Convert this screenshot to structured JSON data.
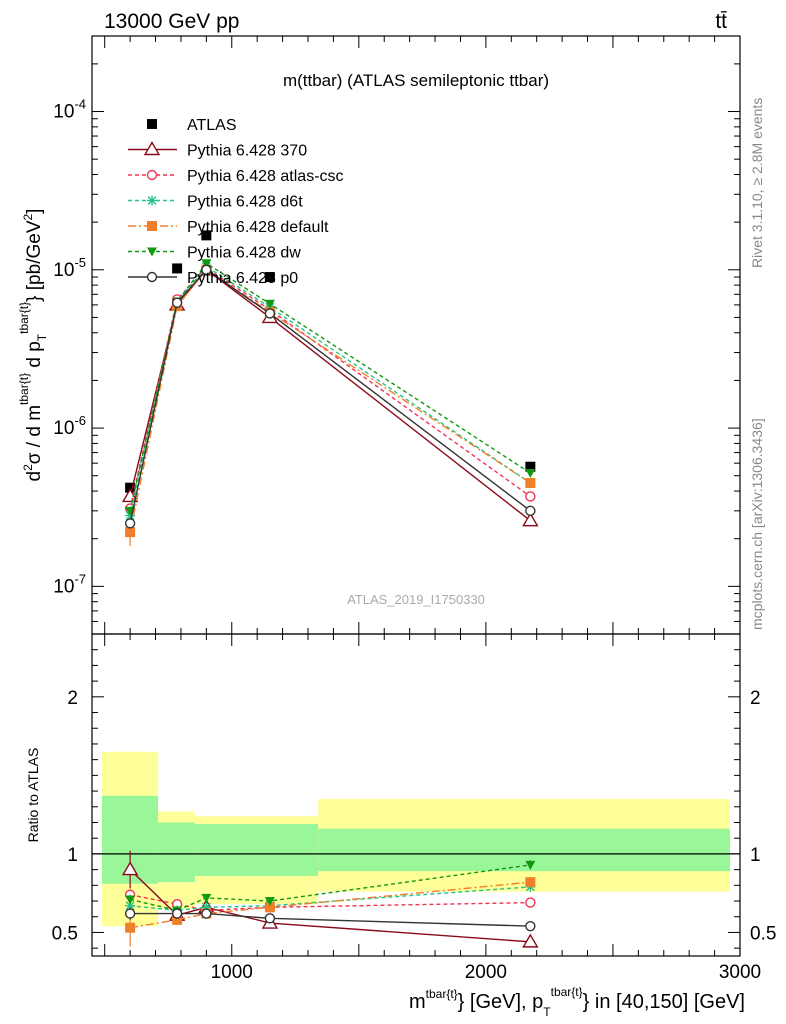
{
  "header": {
    "left": "13000 GeV pp",
    "right": "tt̄"
  },
  "side_labels": {
    "rivet": "Rivet 3.1.10, ≥ 2.8M events",
    "mcplots": "mcplots.cern.ch [arXiv:1306.3436]"
  },
  "chart_data": [
    {
      "type": "line",
      "title": "m(ttbar) (ATLAS semileptonic ttbar)",
      "watermark": "ATLAS_2019_I1750330",
      "ylabel": "d²σ / d m^{tbar{t}} d p_T^{tbar{t}} [pb/GeV²]",
      "yscale": "log",
      "ylim": [
        5e-08,
        0.0003
      ],
      "xlim": [
        450,
        3000
      ],
      "legend_position": "top-left",
      "series": [
        {
          "name": "ATLAS",
          "color": "#000000",
          "marker": "square-filled",
          "dash": "",
          "x": [
            600,
            785,
            900,
            1150,
            2175
          ],
          "y": [
            4.2e-07,
            1.02e-05,
            1.65e-05,
            9e-06,
            5.7e-07
          ]
        },
        {
          "name": "Pythia 6.428 370",
          "color": "#8b0a1a",
          "marker": "triangle-open",
          "dash": "",
          "x": [
            600,
            785,
            900,
            1150,
            2175
          ],
          "y": [
            3.7e-07,
            6e-06,
            1e-05,
            5e-06,
            2.6e-07
          ],
          "err": [
            5e-09,
            0,
            0,
            0,
            0
          ]
        },
        {
          "name": "Pythia 6.428 atlas-csc",
          "color": "#ee3355",
          "marker": "circle-open",
          "dash": "4,3",
          "x": [
            600,
            785,
            900,
            1150,
            2175
          ],
          "y": [
            3.1e-07,
            6.5e-06,
            1.02e-05,
            5.6e-06,
            3.7e-07
          ]
        },
        {
          "name": "Pythia 6.428 d6t",
          "color": "#22c48a",
          "marker": "star",
          "dash": "4,3",
          "x": [
            600,
            785,
            900,
            1150,
            2175
          ],
          "y": [
            2.8e-07,
            6.2e-06,
            1.05e-05,
            5.8e-06,
            4.5e-07
          ]
        },
        {
          "name": "Pythia 6.428 default",
          "color": "#f07f2a",
          "marker": "square-filled",
          "dash": "8,3,2,3",
          "x": [
            600,
            785,
            900,
            1150,
            2175
          ],
          "y": [
            2.2e-07,
            5.9e-06,
            1e-05,
            5.4e-06,
            4.5e-07
          ],
          "err": [
            4e-08,
            0,
            0,
            0,
            0
          ]
        },
        {
          "name": "Pythia 6.428 dw",
          "color": "#119911",
          "marker": "triangle-down-filled",
          "dash": "4,3",
          "x": [
            600,
            785,
            900,
            1150,
            2175
          ],
          "y": [
            3e-07,
            6.3e-06,
            1.1e-05,
            6.1e-06,
            5.2e-07
          ]
        },
        {
          "name": "Pythia 6.428 p0",
          "color": "#333333",
          "marker": "circle-open",
          "dash": "",
          "x": [
            600,
            785,
            900,
            1150,
            2175
          ],
          "y": [
            2.5e-07,
            6.2e-06,
            1e-05,
            5.3e-06,
            3e-07
          ]
        }
      ]
    },
    {
      "type": "line",
      "ylabel": "Ratio to ATLAS",
      "xlabel": "m^{tbar{t}} [GeV], p_T^{tbar{t}} in [40,150] [GeV]",
      "ylim": [
        0.35,
        2.4
      ],
      "xlim": [
        450,
        3000
      ],
      "yticks": [
        0.5,
        1,
        2
      ],
      "xticks": [
        1000,
        2000,
        3000
      ],
      "bands": [
        {
          "x": [
            450,
            710
          ],
          "outer": [
            0.54,
            1.65
          ],
          "inner": [
            0.81,
            1.37
          ]
        },
        {
          "x": [
            710,
            855
          ],
          "outer": [
            0.65,
            1.27
          ],
          "inner": [
            0.82,
            1.2
          ]
        },
        {
          "x": [
            855,
            1340
          ],
          "outer": [
            0.68,
            1.24
          ],
          "inner": [
            0.86,
            1.19
          ]
        },
        {
          "x": [
            1340,
            3000
          ],
          "outer": [
            0.76,
            1.35
          ],
          "inner": [
            0.89,
            1.16
          ]
        }
      ],
      "band_colors": {
        "outer": "#ffff99",
        "inner": "#99f799"
      },
      "series": [
        {
          "name": "Pythia 6.428 370",
          "x": [
            600,
            785,
            900,
            1150,
            2175
          ],
          "y": [
            0.9,
            0.61,
            0.66,
            0.56,
            0.44
          ],
          "err": [
            0.12,
            0.02,
            0.03,
            0.02,
            0.03
          ]
        },
        {
          "name": "Pythia 6.428 atlas-csc",
          "x": [
            600,
            785,
            900,
            1150,
            2175
          ],
          "y": [
            0.74,
            0.68,
            0.64,
            0.66,
            0.69
          ],
          "err": [
            0.03,
            0.02,
            0.02,
            0.02,
            0.03
          ]
        },
        {
          "name": "Pythia 6.428 d6t",
          "x": [
            600,
            785,
            900,
            1150,
            2175
          ],
          "y": [
            0.67,
            0.64,
            0.66,
            0.67,
            0.79
          ],
          "err": [
            0.03,
            0.02,
            0.02,
            0.02,
            0.03
          ]
        },
        {
          "name": "Pythia 6.428 default",
          "x": [
            600,
            785,
            900,
            1150,
            2175
          ],
          "y": [
            0.53,
            0.58,
            0.62,
            0.66,
            0.82
          ],
          "err": [
            0.12,
            0.02,
            0.02,
            0.02,
            0.03
          ]
        },
        {
          "name": "Pythia 6.428 dw",
          "x": [
            600,
            785,
            900,
            1150,
            2175
          ],
          "y": [
            0.71,
            0.64,
            0.72,
            0.7,
            0.93
          ],
          "err": [
            0.03,
            0.02,
            0.02,
            0.02,
            0.03
          ]
        },
        {
          "name": "Pythia 6.428 p0",
          "x": [
            600,
            785,
            900,
            1150,
            2175
          ],
          "y": [
            0.62,
            0.62,
            0.62,
            0.59,
            0.54
          ],
          "err": [
            0.04,
            0.02,
            0.02,
            0.02,
            0.03
          ]
        }
      ]
    }
  ]
}
